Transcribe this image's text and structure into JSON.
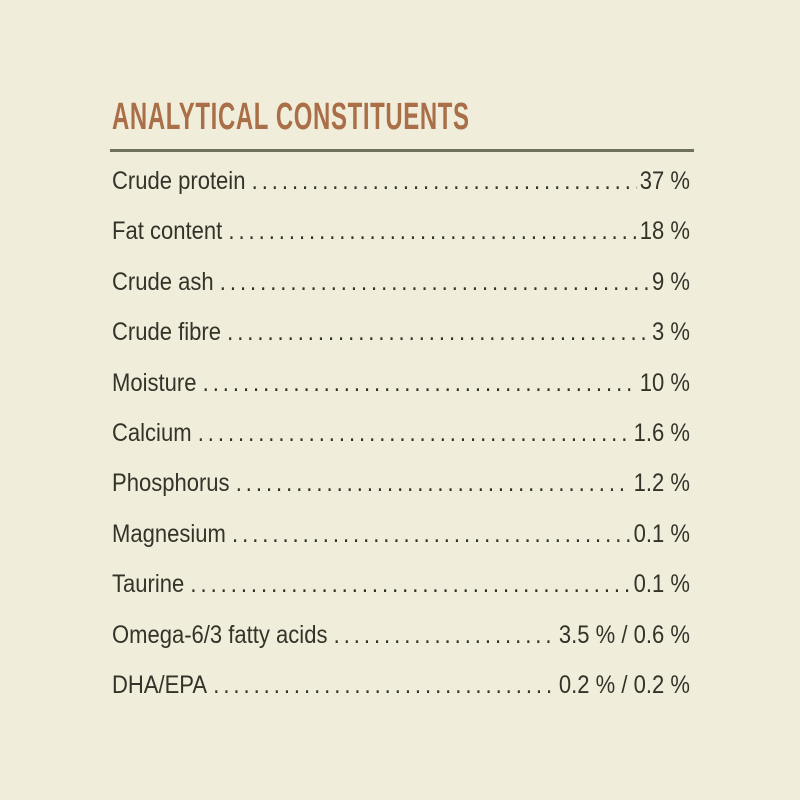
{
  "page": {
    "background_color": "#f0eedb",
    "title_color": "#aa6f48",
    "rule_color": "#6e715d",
    "text_color": "#343329"
  },
  "panel": {
    "title": "ANALYTICAL CONSTITUENTS",
    "rows": [
      {
        "label": "Crude protein",
        "value": "37 %"
      },
      {
        "label": "Fat content",
        "value": "18 %"
      },
      {
        "label": "Crude ash",
        "value": "9 %"
      },
      {
        "label": "Crude fibre",
        "value": "3 %"
      },
      {
        "label": "Moisture",
        "value": "10 %"
      },
      {
        "label": "Calcium",
        "value": "1.6 %"
      },
      {
        "label": "Phosphorus",
        "value": "1.2 %"
      },
      {
        "label": "Magnesium",
        "value": "0.1 %"
      },
      {
        "label": "Taurine",
        "value": "0.1 %"
      },
      {
        "label": "Omega-6/3 fatty acids",
        "value": "3.5 % / 0.6 %"
      },
      {
        "label": "DHA/EPA",
        "value": "0.2 % / 0.2 %"
      }
    ]
  }
}
